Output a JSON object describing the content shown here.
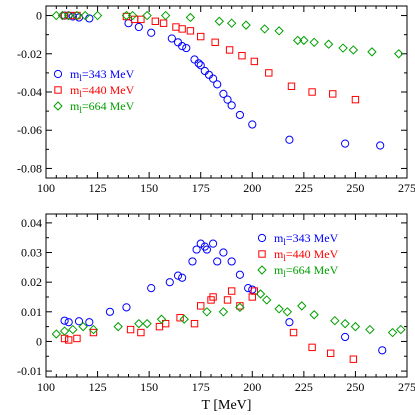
{
  "chart_data": [
    {
      "type": "scatter",
      "title": "",
      "xlabel": "",
      "ylabel": "",
      "xlim": [
        100,
        275
      ],
      "ylim": [
        -0.085,
        0.005
      ],
      "xticks": [
        "100",
        "125",
        "150",
        "175",
        "200",
        "225",
        "250",
        "275"
      ],
      "yticks": [
        "0",
        "-0.02",
        "-0.04",
        "-0.06",
        "-0.08"
      ],
      "ytick_values": [
        0,
        -0.02,
        -0.04,
        -0.06,
        -0.08
      ],
      "grid": false,
      "legend": {
        "placement": "middle-left"
      },
      "series": [
        {
          "name": "m",
          "name_sub": "l",
          "name_rest": "=343 MeV",
          "marker": "circle",
          "color": "#0000ff",
          "points": [
            [
              109,
              0.0
            ],
            [
              111,
              0.0
            ],
            [
              113,
              -0.0005
            ],
            [
              116,
              -0.001
            ],
            [
              121,
              -0.0015
            ],
            [
              140,
              -0.004
            ],
            [
              145,
              -0.006
            ],
            [
              151,
              -0.009
            ],
            [
              161,
              -0.012
            ],
            [
              164,
              -0.014
            ],
            [
              166,
              -0.016
            ],
            [
              168,
              -0.017
            ],
            [
              172,
              -0.023
            ],
            [
              174,
              -0.025
            ],
            [
              175,
              -0.026
            ],
            [
              177,
              -0.029
            ],
            [
              179,
              -0.031
            ],
            [
              181,
              -0.033
            ],
            [
              183,
              -0.036
            ],
            [
              186,
              -0.041
            ],
            [
              188,
              -0.044
            ],
            [
              190,
              -0.047
            ],
            [
              194,
              -0.052
            ],
            [
              200,
              -0.057
            ],
            [
              218,
              -0.065
            ],
            [
              245,
              -0.067
            ],
            [
              262,
              -0.068
            ]
          ]
        },
        {
          "name": "m",
          "name_sub": "l",
          "name_rest": "=440 MeV",
          "marker": "square",
          "color": "#ff0000",
          "points": [
            [
              109,
              0.0
            ],
            [
              112,
              0.0
            ],
            [
              115,
              0.0
            ],
            [
              139,
              -0.0005
            ],
            [
              143,
              -0.002
            ],
            [
              146,
              -0.002
            ],
            [
              153,
              -0.003
            ],
            [
              157,
              -0.004
            ],
            [
              163,
              -0.006
            ],
            [
              166,
              -0.007
            ],
            [
              170,
              -0.008
            ],
            [
              175,
              -0.011
            ],
            [
              182,
              -0.014
            ],
            [
              189,
              -0.018
            ],
            [
              195,
              -0.021
            ],
            [
              201,
              -0.024
            ],
            [
              208,
              -0.03
            ],
            [
              219,
              -0.037
            ],
            [
              229,
              -0.04
            ],
            [
              239,
              -0.041
            ],
            [
              250,
              -0.044
            ]
          ]
        },
        {
          "name": "m",
          "name_sub": "l",
          "name_rest": "=664 MeV",
          "marker": "diamond",
          "color": "#00a000",
          "points": [
            [
              105,
              0.0
            ],
            [
              108,
              0.0
            ],
            [
              111,
              0.0
            ],
            [
              115,
              0.0
            ],
            [
              119,
              0.0
            ],
            [
              125,
              0.0
            ],
            [
              139,
              0.0
            ],
            [
              142,
              0.0
            ],
            [
              149,
              0.0
            ],
            [
              158,
              0.0
            ],
            [
              170,
              -0.001
            ],
            [
              184,
              -0.003
            ],
            [
              190,
              -0.004
            ],
            [
              197,
              -0.005
            ],
            [
              206,
              -0.007
            ],
            [
              213,
              -0.008
            ],
            [
              222,
              -0.013
            ],
            [
              225,
              -0.013
            ],
            [
              230,
              -0.014
            ],
            [
              237,
              -0.015
            ],
            [
              244,
              -0.017
            ],
            [
              249,
              -0.018
            ],
            [
              258,
              -0.019
            ],
            [
              271,
              -0.02
            ]
          ]
        }
      ]
    },
    {
      "type": "scatter",
      "title": "",
      "xlabel": "T [MeV]",
      "ylabel": "",
      "xlim": [
        100,
        275
      ],
      "ylim": [
        -0.012,
        0.043
      ],
      "xticks": [
        "100",
        "125",
        "150",
        "175",
        "200",
        "225",
        "250",
        "275"
      ],
      "yticks": [
        "0.04",
        "0.03",
        "0.02",
        "0.01",
        "0",
        "-0.01"
      ],
      "ytick_values": [
        0.04,
        0.03,
        0.02,
        0.01,
        0,
        -0.01
      ],
      "grid": false,
      "legend": {
        "placement": "top-right"
      },
      "series": [
        {
          "name": "m",
          "name_sub": "l",
          "name_rest": "=343 MeV",
          "marker": "circle",
          "color": "#0000ff",
          "points": [
            [
              109,
              0.007
            ],
            [
              111,
              0.0065
            ],
            [
              116,
              0.0068
            ],
            [
              121,
              0.0065
            ],
            [
              131,
              0.01
            ],
            [
              139,
              0.0115
            ],
            [
              151,
              0.018
            ],
            [
              160,
              0.02
            ],
            [
              164,
              0.0222
            ],
            [
              166,
              0.0215
            ],
            [
              171,
              0.027
            ],
            [
              173,
              0.031
            ],
            [
              175,
              0.033
            ],
            [
              177,
              0.032
            ],
            [
              178,
              0.031
            ],
            [
              181,
              0.033
            ],
            [
              183,
              0.027
            ],
            [
              186,
              0.03
            ],
            [
              190,
              0.027
            ],
            [
              194,
              0.0225
            ],
            [
              198,
              0.018
            ],
            [
              200,
              0.0175
            ],
            [
              218,
              0.0065
            ],
            [
              245,
              0.0015
            ],
            [
              263,
              -0.003
            ]
          ]
        },
        {
          "name": "m",
          "name_sub": "l",
          "name_rest": "=440 MeV",
          "marker": "square",
          "color": "#ff0000",
          "points": [
            [
              109,
              0.001
            ],
            [
              111,
              0.0005
            ],
            [
              115,
              0.001
            ],
            [
              123,
              0.003
            ],
            [
              141,
              0.004
            ],
            [
              146,
              0.003
            ],
            [
              155,
              0.005
            ],
            [
              158,
              0.006
            ],
            [
              165,
              0.008
            ],
            [
              172,
              0.006
            ],
            [
              175,
              0.012
            ],
            [
              180,
              0.014
            ],
            [
              181,
              0.015
            ],
            [
              188,
              0.014
            ],
            [
              190,
              0.017
            ],
            [
              194,
              0.012
            ],
            [
              200,
              0.015
            ],
            [
              201,
              0.017
            ],
            [
              220,
              0.003
            ],
            [
              229,
              -0.002
            ],
            [
              238,
              -0.004
            ],
            [
              249,
              -0.006
            ]
          ]
        },
        {
          "name": "m",
          "name_sub": "l",
          "name_rest": "=664 MeV",
          "marker": "diamond",
          "color": "#00a000",
          "points": [
            [
              105,
              0.0025
            ],
            [
              109,
              0.0035
            ],
            [
              113,
              0.004
            ],
            [
              118,
              0.005
            ],
            [
              123,
              0.004
            ],
            [
              135,
              0.005
            ],
            [
              145,
              0.006
            ],
            [
              149,
              0.006
            ],
            [
              156,
              0.0075
            ],
            [
              167,
              0.0075
            ],
            [
              178,
              0.01
            ],
            [
              186,
              0.01
            ],
            [
              194,
              0.0115
            ],
            [
              204,
              0.016
            ],
            [
              207,
              0.014
            ],
            [
              213,
              0.011
            ],
            [
              217,
              0.01
            ],
            [
              224,
              0.012
            ],
            [
              230,
              0.009
            ],
            [
              240,
              0.007
            ],
            [
              245,
              0.006
            ],
            [
              250,
              0.005
            ],
            [
              257,
              0.004
            ],
            [
              268,
              0.003
            ],
            [
              272,
              0.004
            ]
          ]
        }
      ]
    }
  ]
}
